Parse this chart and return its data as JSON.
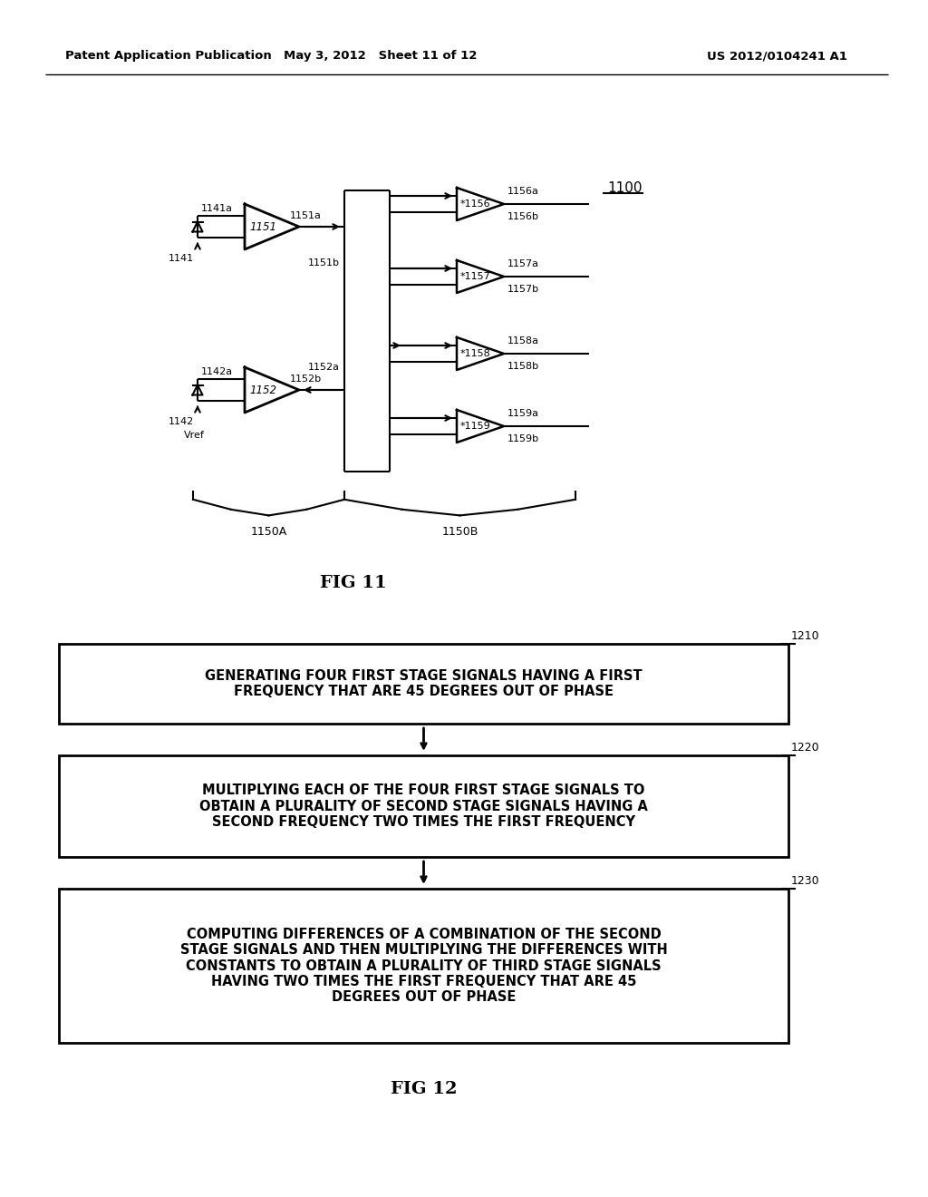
{
  "header_left": "Patent Application Publication",
  "header_mid": "May 3, 2012   Sheet 11 of 12",
  "header_right": "US 2012/0104241 A1",
  "fig11_label": "FIG 11",
  "fig12_label": "FIG 12",
  "ref_1100": "1100",
  "ref_1141a": "1141a",
  "ref_1141": "1141",
  "ref_1142a": "1142a",
  "ref_1142": "1142",
  "ref_1151": "1151",
  "ref_1151a": "1151a",
  "ref_1151b": "1151b",
  "ref_1152": "1152",
  "ref_1152a": "1152a",
  "ref_1152b": "1152b",
  "ref_1150A": "1150A",
  "ref_1150B": "1150B",
  "ref_1156a": "1156a",
  "ref_1156": "*1156",
  "ref_1156b": "1156b",
  "ref_1157a": "1157a",
  "ref_1157": "*1157",
  "ref_1157b": "1157b",
  "ref_1158a": "1158a",
  "ref_1158": "*1158",
  "ref_1158b": "1158b",
  "ref_1159a": "1159a",
  "ref_1159": "*1159",
  "ref_1159b": "1159b",
  "vref": "Vref",
  "box1_label": "GENERATING FOUR FIRST STAGE SIGNALS HAVING A FIRST\nFREQUENCY THAT ARE 45 DEGREES OUT OF PHASE",
  "box2_label": "MULTIPLYING EACH OF THE FOUR FIRST STAGE SIGNALS TO\nOBTAIN A PLURALITY OF SECOND STAGE SIGNALS HAVING A\nSECOND FREQUENCY TWO TIMES THE FIRST FREQUENCY",
  "box3_label": "COMPUTING DIFFERENCES OF A COMBINATION OF THE SECOND\nSTAGE SIGNALS AND THEN MULTIPLYING THE DIFFERENCES WITH\nCONSTANTS TO OBTAIN A PLURALITY OF THIRD STAGE SIGNALS\nHAVING TWO TIMES THE FIRST FREQUENCY THAT ARE 45\nDEGREES OUT OF PHASE",
  "ref_1210": "1210",
  "ref_1220": "1220",
  "ref_1230": "1230",
  "bg_color": "#ffffff",
  "line_color": "#000000",
  "text_color": "#000000"
}
